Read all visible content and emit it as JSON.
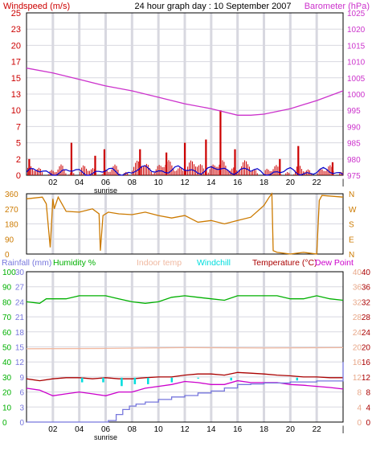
{
  "header": {
    "title": "24 hour graph day : 10 September 2007",
    "left_label": "Windspeed (m/s)",
    "right_label": "Barometer (hPa)"
  },
  "colors": {
    "windspeed": "#cc0000",
    "wind_avg": "#0000cc",
    "barometer": "#cc33cc",
    "direction": "#cc7a00",
    "humidity": "#00b000",
    "indoor": "#f0b8a0",
    "windchill": "#00dddd",
    "temperature": "#aa0000",
    "dewpoint": "#cc00cc",
    "rainfall": "#7777dd",
    "grid": "#d8d8e0"
  },
  "chart_data": [
    {
      "type": "line",
      "title": "24 hour graph day : 10 September 2007",
      "ylabel": "Windspeed (m/s)",
      "ylabel_right": "Barometer (hPa)",
      "x_ticks": [
        "02",
        "04",
        "06",
        "08",
        "10",
        "12",
        "14",
        "16",
        "18",
        "20",
        "22"
      ],
      "x_annotation": "sunrise",
      "sunrise_hour": 6,
      "ylim": [
        0,
        25
      ],
      "y_ticks": [
        "0",
        "2",
        "5",
        "7",
        "10",
        "13",
        "15",
        "17",
        "20",
        "23",
        "25"
      ],
      "ylim_right": [
        975,
        1025
      ],
      "y_ticks_right": [
        "975",
        "980",
        "985",
        "990",
        "995",
        "1000",
        "1005",
        "1010",
        "1015",
        "1020",
        "1025"
      ],
      "series": [
        {
          "name": "Windspeed (m/s)",
          "x": [
            0.2,
            3.4,
            5.2,
            5.9,
            8.6,
            10.6,
            12.0,
            13.6,
            14.7,
            15.8,
            19.2,
            20.6,
            23.2
          ],
          "values": [
            2.5,
            5,
            3,
            4,
            4,
            3.5,
            5,
            5.5,
            10,
            4,
            2.5,
            4.5,
            2
          ]
        },
        {
          "name": "Barometer (hPa)",
          "x": [
            0,
            2,
            4,
            6,
            8,
            10,
            12,
            14,
            16,
            17,
            18,
            20,
            22,
            24
          ],
          "values": [
            1008,
            1006.5,
            1004.5,
            1002.5,
            1001,
            999,
            997,
            995.5,
            993.5,
            993.5,
            993.8,
            995.5,
            998,
            1001
          ]
        }
      ]
    },
    {
      "type": "line",
      "ylim": [
        0,
        360
      ],
      "y_ticks": [
        "0",
        "90",
        "180",
        "270",
        "360"
      ],
      "compass_labels": [
        "N",
        "W",
        "S",
        "E",
        "N"
      ],
      "series": [
        {
          "name": "Wind direction",
          "x": [
            0,
            1.2,
            1.5,
            1.8,
            2.0,
            2.1,
            2.4,
            3.0,
            4.0,
            5.0,
            5.5,
            5.6,
            5.8,
            6.2,
            7.0,
            8.0,
            9.0,
            10.0,
            11.0,
            12.0,
            13.0,
            14.0,
            15.0,
            16.0,
            17.0,
            18.0,
            18.4,
            18.6,
            18.7,
            19.0,
            20.0,
            21.0,
            22.0,
            22.2,
            22.4,
            24.0
          ],
          "values": [
            330,
            340,
            300,
            40,
            330,
            270,
            340,
            255,
            250,
            270,
            240,
            20,
            230,
            250,
            240,
            235,
            250,
            230,
            215,
            230,
            190,
            200,
            180,
            200,
            220,
            290,
            340,
            360,
            20,
            10,
            0,
            10,
            0,
            320,
            350,
            340
          ]
        }
      ]
    },
    {
      "type": "line",
      "x_ticks": [
        "02",
        "04",
        "06",
        "08",
        "10",
        "12",
        "14",
        "16",
        "18",
        "20",
        "22"
      ],
      "x_annotation": "sunrise",
      "y_axis_titles": [
        "Rainfall (mm)",
        "Humidity %",
        "Indoor temp",
        "Windchill",
        "Temperature (°C)",
        "Dew Point"
      ],
      "ylim_rain": [
        0,
        30
      ],
      "y_ticks_rain": [
        "0",
        "3",
        "6",
        "9",
        "12",
        "15",
        "18",
        "21",
        "24",
        "27",
        "30"
      ],
      "ylim_humidity": [
        0,
        100
      ],
      "y_ticks_humidity": [
        "0",
        "10",
        "20",
        "30",
        "40",
        "50",
        "60",
        "70",
        "80",
        "90",
        "100"
      ],
      "ylim_temp": [
        0,
        40
      ],
      "y_ticks_temp": [
        "0",
        "4",
        "8",
        "12",
        "16",
        "20",
        "24",
        "28",
        "32",
        "36",
        "40"
      ],
      "series": [
        {
          "name": "Humidity %",
          "x": [
            0,
            1,
            1.5,
            2,
            3,
            4,
            5,
            6,
            7,
            8,
            9,
            10,
            11,
            12,
            13,
            14,
            15,
            16,
            17,
            18,
            19,
            20,
            21,
            22,
            23,
            24
          ],
          "values": [
            80,
            79,
            82,
            82,
            82,
            84,
            84,
            84,
            82,
            80,
            79,
            80,
            83,
            84,
            83,
            82,
            81,
            84,
            84,
            84,
            84,
            82,
            82,
            84,
            82,
            81
          ]
        },
        {
          "name": "Indoor temp",
          "x": [
            0,
            6,
            12,
            18,
            24
          ],
          "values": [
            19.5,
            19.6,
            19.8,
            19.7,
            19.8
          ]
        },
        {
          "name": "Windchill",
          "x": [
            4.2,
            5.8,
            7.2,
            8.2,
            9.2,
            11.0,
            13.0,
            15.5,
            20.5
          ],
          "values": [
            11,
            11,
            10,
            10.5,
            10.5,
            11,
            12,
            11.5,
            11.5
          ]
        },
        {
          "name": "Temperature (°C)",
          "x": [
            0,
            1,
            2,
            3,
            4,
            5,
            6,
            7,
            8,
            9,
            10,
            11,
            12,
            13,
            14,
            15,
            16,
            17,
            18,
            19,
            20,
            21,
            22,
            23,
            24
          ],
          "values": [
            11.5,
            11,
            11.5,
            11.8,
            11.8,
            11.5,
            11.8,
            11.5,
            11.5,
            11.8,
            12,
            12,
            12.5,
            12.8,
            12.8,
            12.5,
            13.2,
            13,
            12.8,
            12.5,
            12.3,
            12,
            12,
            11.8,
            11.8
          ]
        },
        {
          "name": "Dew Point",
          "x": [
            0,
            1,
            2,
            3,
            4,
            5,
            6,
            7,
            8,
            9,
            10,
            11,
            12,
            13,
            14,
            15,
            16,
            17,
            18,
            19,
            20,
            21,
            22,
            23,
            24
          ],
          "values": [
            9,
            8.5,
            7,
            7.5,
            8,
            7.5,
            7,
            8,
            8,
            9,
            9.5,
            10,
            10.8,
            10.5,
            10,
            10,
            11,
            10.5,
            10.5,
            10.5,
            10,
            9.8,
            9.5,
            9.2,
            8.8
          ]
        },
        {
          "name": "Rainfall (mm)",
          "x": [
            0,
            5.5,
            6.2,
            6.8,
            7.3,
            7.8,
            8.3,
            9.0,
            10.0,
            11.0,
            12.0,
            13.0,
            14.0,
            15.0,
            16.0,
            17.0,
            18.0,
            20.0,
            22.0,
            23.9,
            24.0
          ],
          "values": [
            0,
            0,
            0.3,
            1.5,
            2.5,
            3.2,
            3.6,
            4.0,
            4.5,
            5.0,
            5.3,
            5.8,
            6.2,
            6.8,
            7.5,
            7.6,
            7.8,
            8.0,
            8.2,
            8.2,
            12
          ]
        }
      ]
    }
  ]
}
